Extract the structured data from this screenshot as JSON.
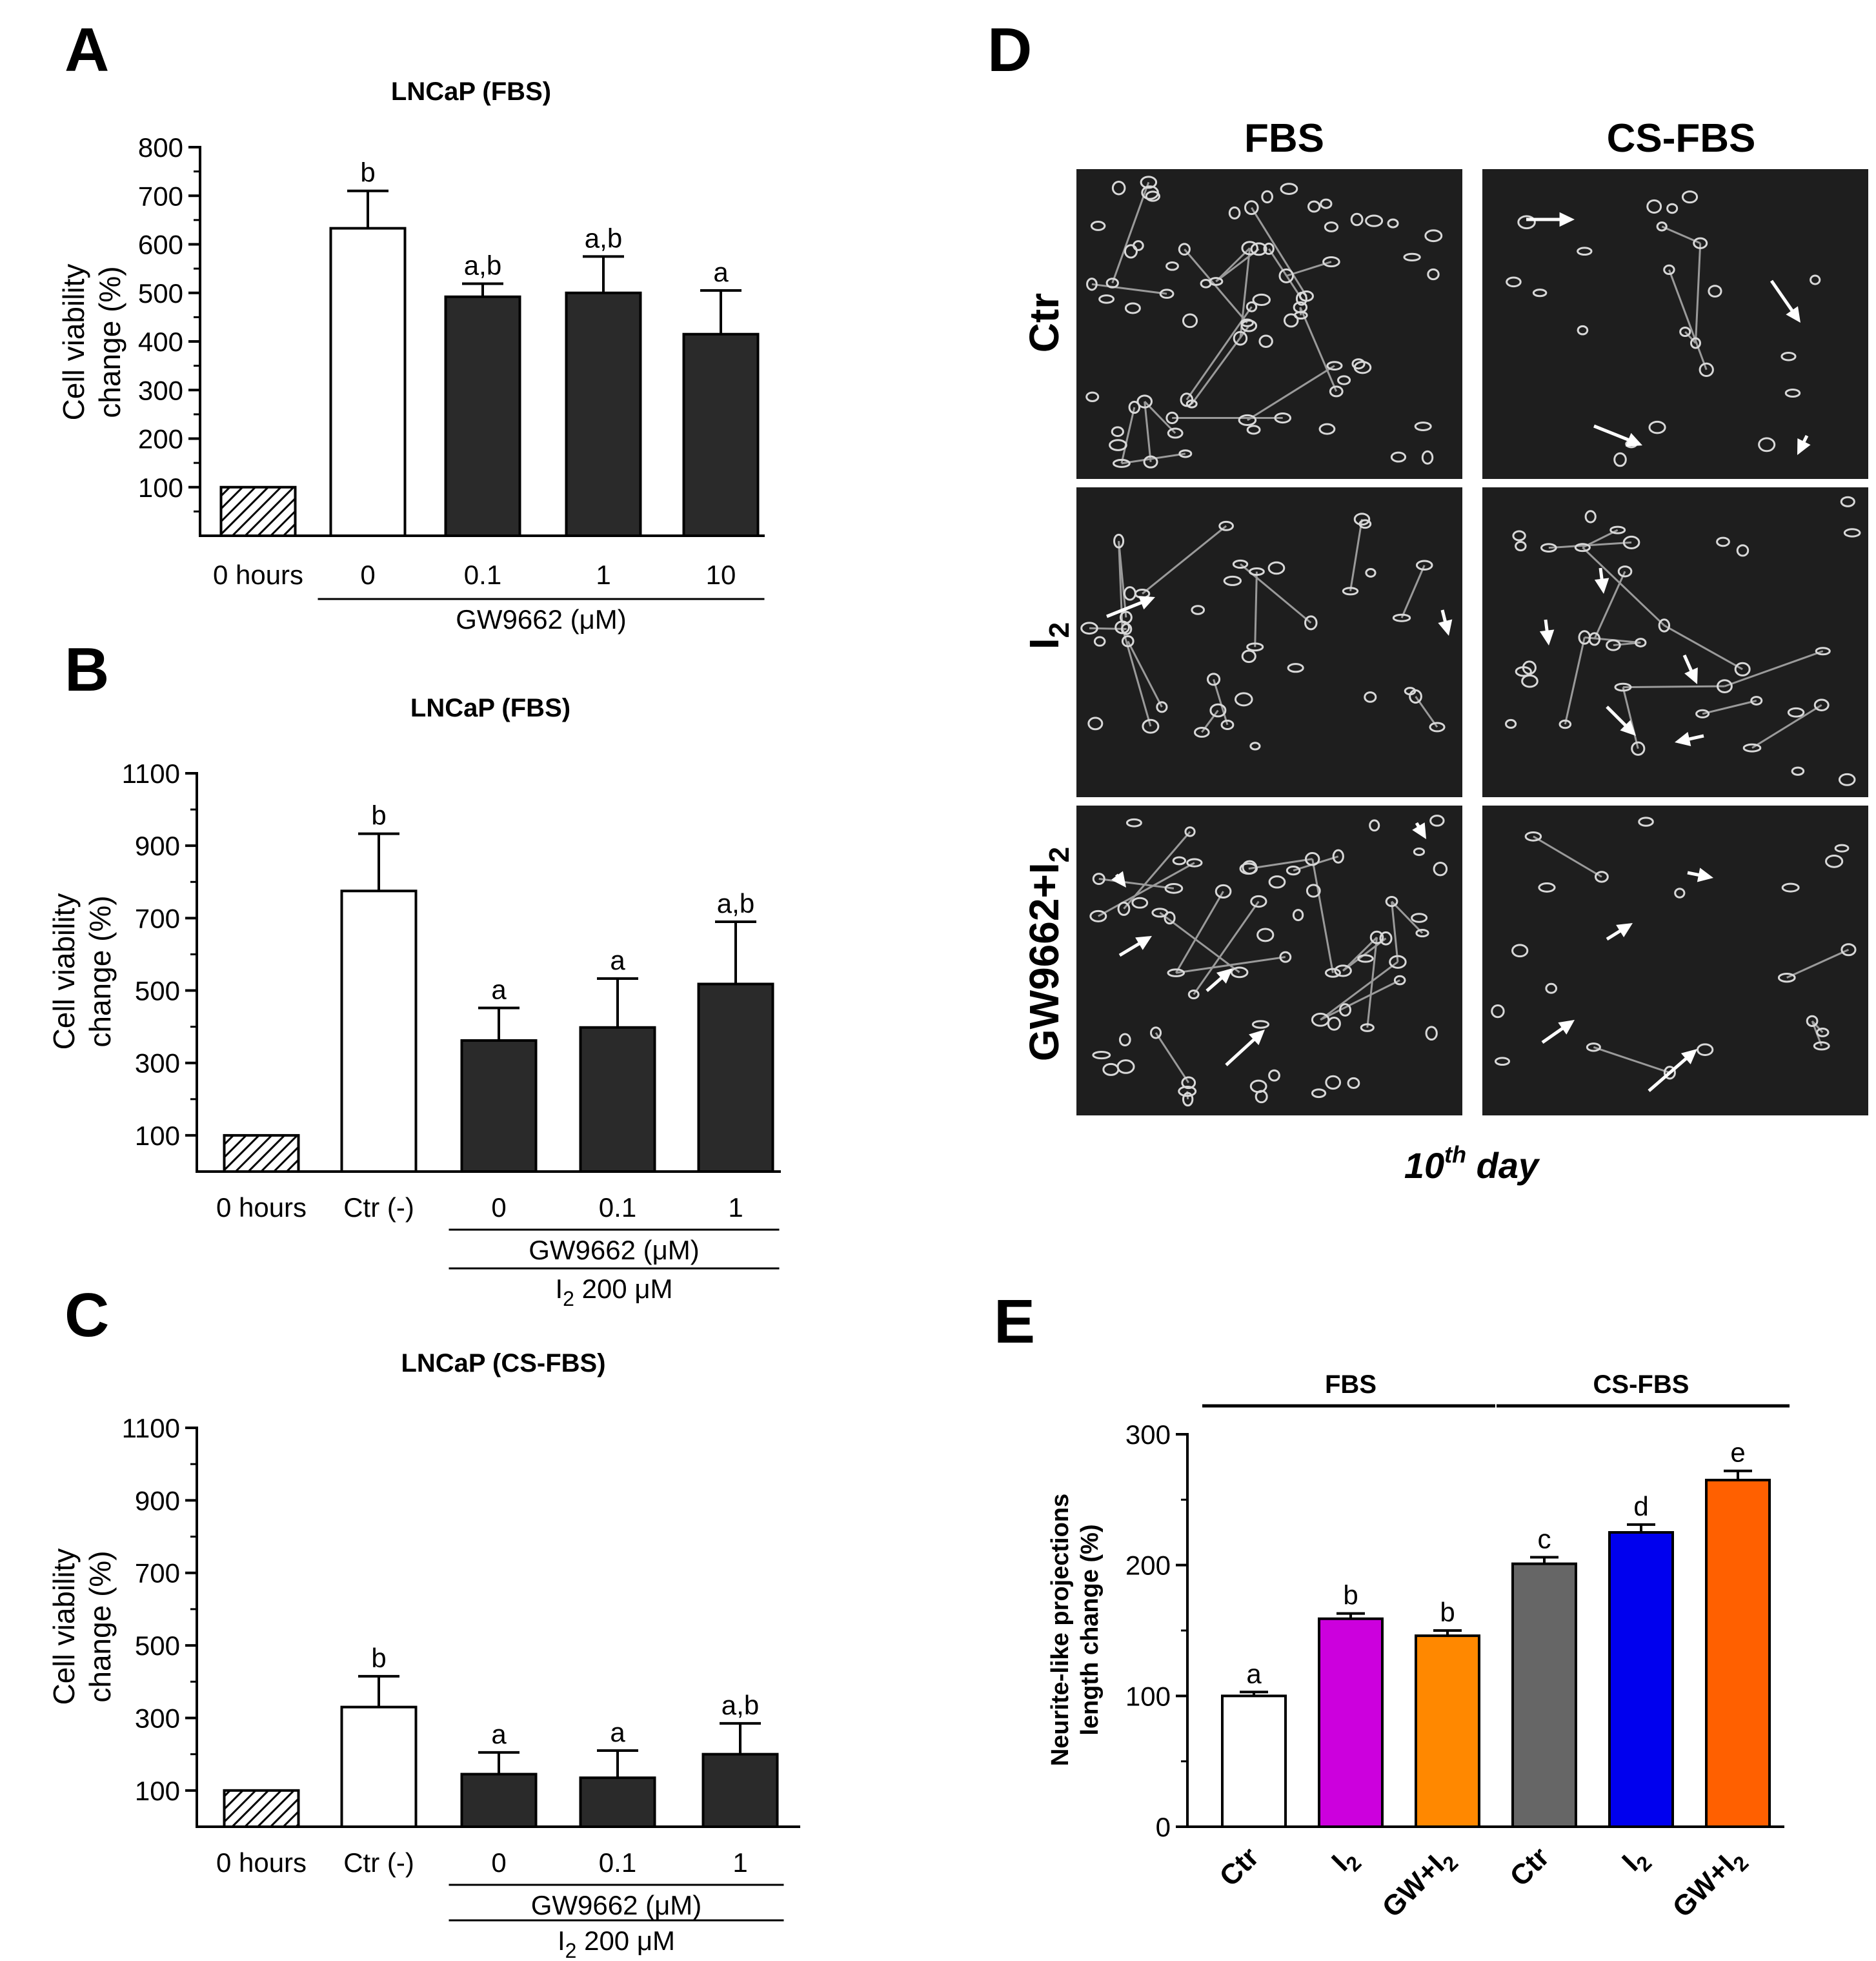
{
  "figure": {
    "panels": [
      "A",
      "B",
      "C",
      "D",
      "E"
    ]
  },
  "chart_data": [
    {
      "id": "A",
      "type": "bar",
      "title": "LNCaP (FBS)",
      "ylabel": [
        "Cell viability",
        "change (%)"
      ],
      "ylim": [
        0,
        800
      ],
      "yticks": [
        100,
        200,
        300,
        400,
        500,
        600,
        700,
        800
      ],
      "categories": [
        "0 hours",
        "0",
        "0.1",
        "1",
        "10"
      ],
      "values": [
        100,
        633,
        492,
        500,
        415
      ],
      "errors": [
        0,
        77,
        27,
        75,
        90
      ],
      "letters": [
        "",
        "b",
        "a,b",
        "a,b",
        "a"
      ],
      "fills": [
        "hatch",
        "#ffffff",
        "#2a2a2a",
        "#2a2a2a",
        "#2a2a2a"
      ],
      "group_labels": [
        {
          "text": "GW9662 (μM)",
          "span": [
            1,
            4
          ]
        }
      ]
    },
    {
      "id": "B",
      "type": "bar",
      "title": "LNCaP (FBS)",
      "ylabel": [
        "Cell viability",
        "change (%)"
      ],
      "ylim": [
        0,
        1100
      ],
      "yticks": [
        100,
        300,
        500,
        700,
        900,
        1100
      ],
      "categories": [
        "0 hours",
        "Ctr (-)",
        "0",
        "0.1",
        "1"
      ],
      "values": [
        100,
        775,
        362,
        398,
        518
      ],
      "errors": [
        0,
        158,
        90,
        135,
        172
      ],
      "letters": [
        "",
        "b",
        "a",
        "a",
        "a,b"
      ],
      "fills": [
        "hatch",
        "#ffffff",
        "#2a2a2a",
        "#2a2a2a",
        "#2a2a2a"
      ],
      "group_labels": [
        {
          "text": "GW9662 (μM)",
          "span": [
            2,
            4
          ]
        },
        {
          "text": "I",
          "sub": "2",
          "rest": " 200 μM",
          "span": [
            2,
            4
          ]
        }
      ]
    },
    {
      "id": "C",
      "type": "bar",
      "title": "LNCaP (CS-FBS)",
      "ylabel": [
        "Cell viability",
        "change (%)"
      ],
      "ylim": [
        0,
        1100
      ],
      "yticks": [
        100,
        300,
        500,
        700,
        900,
        1100
      ],
      "categories": [
        "0 hours",
        "Ctr (-)",
        "0",
        "0.1",
        "1"
      ],
      "values": [
        100,
        330,
        145,
        135,
        200
      ],
      "errors": [
        0,
        85,
        60,
        75,
        85
      ],
      "letters": [
        "",
        "b",
        "a",
        "a",
        "a,b"
      ],
      "fills": [
        "hatch",
        "#ffffff",
        "#2a2a2a",
        "#2a2a2a",
        "#2a2a2a"
      ],
      "group_labels": [
        {
          "text": "GW9662 (μM)",
          "span": [
            2,
            4
          ]
        },
        {
          "text": "I",
          "sub": "2",
          "rest": " 200 μM",
          "span": [
            2,
            4
          ]
        }
      ]
    },
    {
      "id": "E",
      "type": "bar",
      "title": "",
      "ylabel": [
        "Neurite-like projections",
        "length change (%)"
      ],
      "ylim": [
        0,
        300
      ],
      "yticks": [
        0,
        100,
        200,
        300
      ],
      "categories": [
        "Ctr",
        "I2",
        "GW+I2",
        "Ctr",
        "I2",
        "GW+I2"
      ],
      "category_display": [
        {
          "main": "Ctr",
          "sub": ""
        },
        {
          "main": "I",
          "sub": "2"
        },
        {
          "main": "GW+I",
          "sub": "2"
        },
        {
          "main": "Ctr",
          "sub": ""
        },
        {
          "main": "I",
          "sub": "2"
        },
        {
          "main": "GW+I",
          "sub": "2"
        }
      ],
      "values": [
        100,
        159,
        146,
        201,
        225,
        265
      ],
      "errors": [
        3,
        4,
        4,
        5,
        6,
        7
      ],
      "letters": [
        "a",
        "b",
        "b",
        "c",
        "d",
        "e"
      ],
      "fills": [
        "#ffffff",
        "#cc00dd",
        "#ff8800",
        "#666666",
        "#0000ee",
        "#ff6000"
      ],
      "group_labels": [
        {
          "text": "FBS",
          "span": [
            0,
            2
          ]
        },
        {
          "text": "CS-FBS",
          "span": [
            3,
            5
          ]
        }
      ]
    }
  ],
  "micrographs": {
    "columns": [
      "FBS",
      "CS-FBS"
    ],
    "rows": [
      {
        "main": "Ctr",
        "sub": ""
      },
      {
        "main": "I",
        "sub": "2"
      },
      {
        "main": "GW9662+I",
        "sub": "2"
      }
    ],
    "caption": {
      "pre": "10",
      "sup": "th",
      "post": " day"
    }
  },
  "colors": {
    "axis": "#000000",
    "dark_bar": "#2a2a2a",
    "micrograph_bg": "#1e1e1e",
    "cell": "#d8d8d8"
  }
}
